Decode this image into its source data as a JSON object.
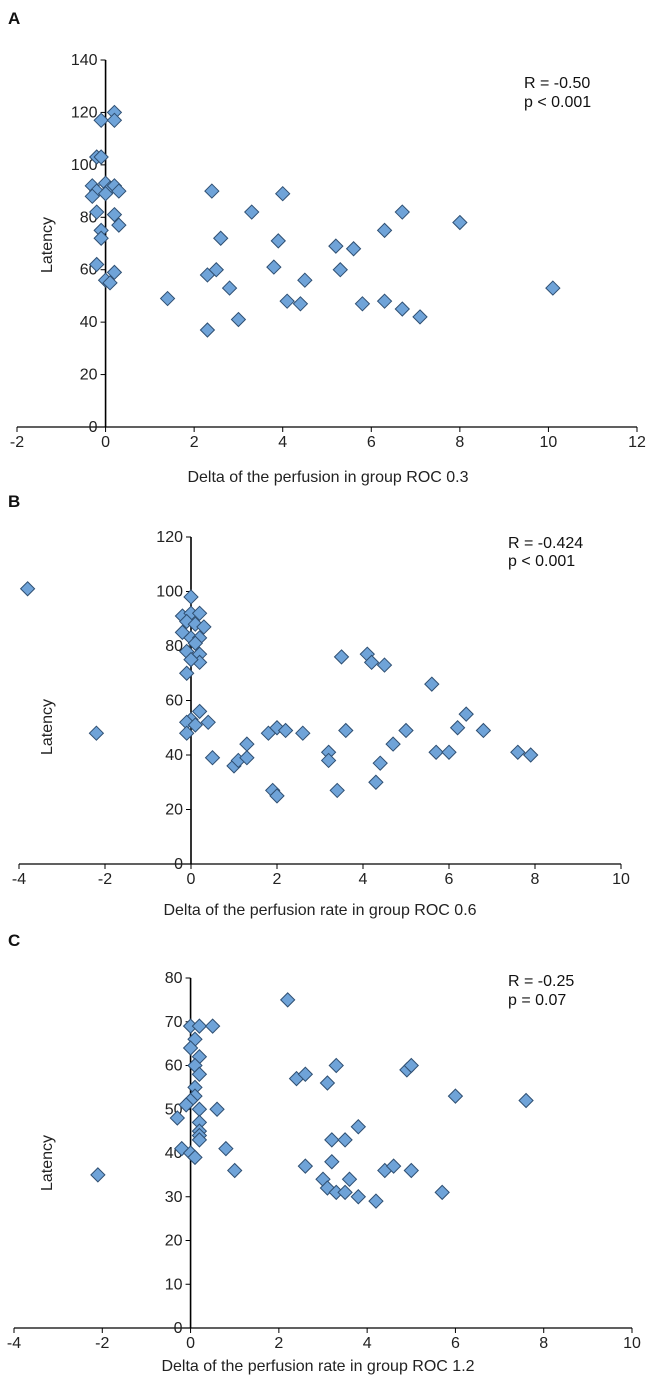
{
  "chart_data": [
    {
      "type": "scatter",
      "panel_label": "A",
      "xlabel": "Delta of the perfusion        in group ROC 0.3",
      "ylabel": "Latency",
      "xlim": [
        -2,
        12
      ],
      "ylim": [
        0,
        140
      ],
      "x_ticks": [
        -2,
        0,
        2,
        4,
        6,
        8,
        10,
        12
      ],
      "y_ticks": [
        0,
        20,
        40,
        60,
        80,
        100,
        120,
        140
      ],
      "stat_r": "R = -0.50",
      "stat_p": "p < 0.001",
      "marker_color": "#6fa3d8",
      "points": [
        {
          "x": -0.1,
          "y": 117
        },
        {
          "x": 0.2,
          "y": 120
        },
        {
          "x": 0.2,
          "y": 117
        },
        {
          "x": -0.2,
          "y": 103
        },
        {
          "x": -0.1,
          "y": 103
        },
        {
          "x": -0.3,
          "y": 92
        },
        {
          "x": -0.2,
          "y": 90
        },
        {
          "x": 0.0,
          "y": 93
        },
        {
          "x": 0.1,
          "y": 91
        },
        {
          "x": 0.2,
          "y": 92
        },
        {
          "x": 0.3,
          "y": 90
        },
        {
          "x": -0.3,
          "y": 88
        },
        {
          "x": 0.0,
          "y": 89
        },
        {
          "x": -0.2,
          "y": 82
        },
        {
          "x": 0.2,
          "y": 81
        },
        {
          "x": 0.3,
          "y": 77
        },
        {
          "x": -0.1,
          "y": 75
        },
        {
          "x": -0.1,
          "y": 72
        },
        {
          "x": -0.2,
          "y": 62
        },
        {
          "x": 0.2,
          "y": 59
        },
        {
          "x": 0.0,
          "y": 56
        },
        {
          "x": 0.1,
          "y": 55
        },
        {
          "x": 1.4,
          "y": 49
        },
        {
          "x": 2.4,
          "y": 90
        },
        {
          "x": 2.3,
          "y": 58
        },
        {
          "x": 2.3,
          "y": 37
        },
        {
          "x": 2.6,
          "y": 72
        },
        {
          "x": 2.5,
          "y": 60
        },
        {
          "x": 2.8,
          "y": 53
        },
        {
          "x": 3.0,
          "y": 41
        },
        {
          "x": 3.3,
          "y": 82
        },
        {
          "x": 4.0,
          "y": 89
        },
        {
          "x": 3.9,
          "y": 71
        },
        {
          "x": 3.8,
          "y": 61
        },
        {
          "x": 4.1,
          "y": 48
        },
        {
          "x": 4.4,
          "y": 47
        },
        {
          "x": 4.5,
          "y": 56
        },
        {
          "x": 5.2,
          "y": 69
        },
        {
          "x": 5.3,
          "y": 60
        },
        {
          "x": 5.6,
          "y": 68
        },
        {
          "x": 5.8,
          "y": 47
        },
        {
          "x": 6.3,
          "y": 75
        },
        {
          "x": 6.3,
          "y": 48
        },
        {
          "x": 6.7,
          "y": 82
        },
        {
          "x": 6.7,
          "y": 45
        },
        {
          "x": 7.1,
          "y": 42
        },
        {
          "x": 8.0,
          "y": 78
        },
        {
          "x": 10.1,
          "y": 53
        }
      ]
    },
    {
      "type": "scatter",
      "panel_label": "B",
      "xlabel": "Delta of the perfusion rate in group ROC 0.6",
      "ylabel": "Latency",
      "xlim": [
        -4,
        10
      ],
      "ylim": [
        0,
        120
      ],
      "x_ticks": [
        -4,
        -2,
        0,
        2,
        4,
        6,
        8,
        10
      ],
      "y_ticks": [
        0,
        20,
        40,
        60,
        80,
        100,
        120
      ],
      "stat_r": "R = -0.424",
      "stat_p": "p < 0.001",
      "marker_color": "#6fa3d8",
      "points": [
        {
          "x": -3.8,
          "y": 101
        },
        {
          "x": -2.2,
          "y": 48
        },
        {
          "x": 0.0,
          "y": 98
        },
        {
          "x": -0.2,
          "y": 91
        },
        {
          "x": 0.0,
          "y": 92
        },
        {
          "x": 0.2,
          "y": 92
        },
        {
          "x": -0.1,
          "y": 89
        },
        {
          "x": 0.1,
          "y": 88
        },
        {
          "x": 0.3,
          "y": 87
        },
        {
          "x": -0.2,
          "y": 85
        },
        {
          "x": 0.0,
          "y": 83
        },
        {
          "x": 0.2,
          "y": 83
        },
        {
          "x": 0.1,
          "y": 81
        },
        {
          "x": -0.1,
          "y": 78
        },
        {
          "x": 0.2,
          "y": 77
        },
        {
          "x": 0.2,
          "y": 74
        },
        {
          "x": 0.0,
          "y": 75
        },
        {
          "x": -0.1,
          "y": 70
        },
        {
          "x": 0.2,
          "y": 56
        },
        {
          "x": 0.0,
          "y": 53
        },
        {
          "x": -0.1,
          "y": 52
        },
        {
          "x": 0.1,
          "y": 51
        },
        {
          "x": -0.1,
          "y": 48
        },
        {
          "x": 0.4,
          "y": 52
        },
        {
          "x": 0.5,
          "y": 39
        },
        {
          "x": 1.0,
          "y": 36
        },
        {
          "x": 1.1,
          "y": 38
        },
        {
          "x": 1.3,
          "y": 44
        },
        {
          "x": 1.3,
          "y": 39
        },
        {
          "x": 1.8,
          "y": 48
        },
        {
          "x": 2.0,
          "y": 50
        },
        {
          "x": 2.2,
          "y": 49
        },
        {
          "x": 2.6,
          "y": 48
        },
        {
          "x": 1.9,
          "y": 27
        },
        {
          "x": 2.0,
          "y": 25
        },
        {
          "x": 3.2,
          "y": 41
        },
        {
          "x": 3.2,
          "y": 38
        },
        {
          "x": 3.4,
          "y": 27
        },
        {
          "x": 3.5,
          "y": 76
        },
        {
          "x": 3.6,
          "y": 49
        },
        {
          "x": 4.1,
          "y": 77
        },
        {
          "x": 4.2,
          "y": 74
        },
        {
          "x": 4.5,
          "y": 73
        },
        {
          "x": 4.3,
          "y": 30
        },
        {
          "x": 4.4,
          "y": 37
        },
        {
          "x": 4.7,
          "y": 44
        },
        {
          "x": 5.0,
          "y": 49
        },
        {
          "x": 5.6,
          "y": 66
        },
        {
          "x": 5.7,
          "y": 41
        },
        {
          "x": 6.0,
          "y": 41
        },
        {
          "x": 6.2,
          "y": 50
        },
        {
          "x": 6.4,
          "y": 55
        },
        {
          "x": 6.8,
          "y": 49
        },
        {
          "x": 7.6,
          "y": 41
        },
        {
          "x": 7.9,
          "y": 40
        }
      ]
    },
    {
      "type": "scatter",
      "panel_label": "C",
      "xlabel": "Delta of the perfusion rate in group ROC 1.2",
      "ylabel": "Latency",
      "xlim": [
        -4,
        10
      ],
      "ylim": [
        0,
        80
      ],
      "x_ticks": [
        -4,
        -2,
        0,
        2,
        4,
        6,
        8,
        10
      ],
      "y_ticks": [
        0,
        10,
        20,
        30,
        40,
        50,
        60,
        70,
        80
      ],
      "stat_r": "R = -0.25",
      "stat_p": "p = 0.07",
      "marker_color": "#6fa3d8",
      "points": [
        {
          "x": -2.1,
          "y": 35
        },
        {
          "x": -0.3,
          "y": 48
        },
        {
          "x": 0.0,
          "y": 69
        },
        {
          "x": 0.2,
          "y": 69
        },
        {
          "x": 0.1,
          "y": 66
        },
        {
          "x": 0.0,
          "y": 64
        },
        {
          "x": 0.2,
          "y": 62
        },
        {
          "x": 0.1,
          "y": 60
        },
        {
          "x": 0.2,
          "y": 58
        },
        {
          "x": 0.1,
          "y": 55
        },
        {
          "x": 0.1,
          "y": 53
        },
        {
          "x": 0.0,
          "y": 52
        },
        {
          "x": -0.1,
          "y": 51
        },
        {
          "x": 0.2,
          "y": 50
        },
        {
          "x": 0.2,
          "y": 47
        },
        {
          "x": 0.2,
          "y": 45
        },
        {
          "x": 0.2,
          "y": 44
        },
        {
          "x": 0.2,
          "y": 43
        },
        {
          "x": -0.2,
          "y": 41
        },
        {
          "x": 0.0,
          "y": 40
        },
        {
          "x": 0.1,
          "y": 39
        },
        {
          "x": 0.5,
          "y": 69
        },
        {
          "x": 0.6,
          "y": 50
        },
        {
          "x": 0.8,
          "y": 41
        },
        {
          "x": 1.0,
          "y": 36
        },
        {
          "x": 2.2,
          "y": 75
        },
        {
          "x": 2.4,
          "y": 57
        },
        {
          "x": 2.6,
          "y": 58
        },
        {
          "x": 2.6,
          "y": 37
        },
        {
          "x": 3.0,
          "y": 34
        },
        {
          "x": 3.1,
          "y": 56
        },
        {
          "x": 3.1,
          "y": 32
        },
        {
          "x": 3.2,
          "y": 43
        },
        {
          "x": 3.2,
          "y": 38
        },
        {
          "x": 3.3,
          "y": 60
        },
        {
          "x": 3.3,
          "y": 31
        },
        {
          "x": 3.5,
          "y": 43
        },
        {
          "x": 3.5,
          "y": 31
        },
        {
          "x": 3.6,
          "y": 34
        },
        {
          "x": 3.8,
          "y": 46
        },
        {
          "x": 3.8,
          "y": 30
        },
        {
          "x": 4.2,
          "y": 29
        },
        {
          "x": 4.4,
          "y": 36
        },
        {
          "x": 4.6,
          "y": 37
        },
        {
          "x": 4.9,
          "y": 59
        },
        {
          "x": 5.0,
          "y": 60
        },
        {
          "x": 5.0,
          "y": 36
        },
        {
          "x": 5.7,
          "y": 31
        },
        {
          "x": 6.0,
          "y": 53
        },
        {
          "x": 7.6,
          "y": 52
        }
      ]
    }
  ]
}
